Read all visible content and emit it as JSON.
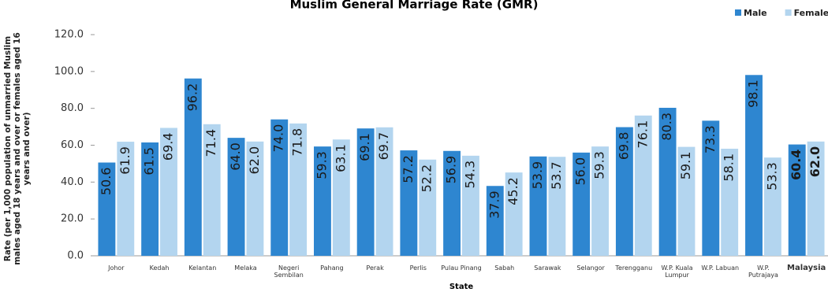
{
  "chart_data": {
    "type": "bar",
    "title": "Muslim General Marriage Rate (GMR)",
    "x_label": "State",
    "y_label": "Rate (per 1,000 population of unmarried Muslim males aged 18 years and over or females aged 16 years and over)",
    "categories": [
      "Johor",
      "Kedah",
      "Kelantan",
      "Melaka",
      "Negeri Sembilan",
      "Pahang",
      "Perak",
      "Perlis",
      "Pulau Pinang",
      "Sabah",
      "Sarawak",
      "Selangor",
      "Terengganu",
      "W.P. Kuala Lumpur",
      "W.P. Labuan",
      "W.P. Putrajaya",
      "Malaysia"
    ],
    "series": [
      {
        "name": "Male",
        "color": "#2e86d0",
        "values": [
          50.6,
          61.5,
          96.2,
          64.0,
          74.0,
          59.3,
          69.1,
          57.2,
          56.9,
          37.9,
          53.9,
          56.0,
          69.8,
          80.3,
          73.3,
          98.1,
          60.4
        ],
        "value_labels": [
          "50.6",
          "61.5",
          "96.2",
          "64.0",
          "74.0",
          "59.3",
          "69.1",
          "57.2",
          "56.9",
          "37.9",
          "53.9",
          "56.0",
          "69.8",
          "80.3",
          "73.3",
          "98.1",
          "60.4"
        ]
      },
      {
        "name": "Female",
        "color": "#b3d5ef",
        "values": [
          61.9,
          69.4,
          71.4,
          62.0,
          71.8,
          63.1,
          69.7,
          52.2,
          54.3,
          45.2,
          53.7,
          59.3,
          76.1,
          59.1,
          58.1,
          53.3,
          62.0
        ],
        "value_labels": [
          "61.9",
          "69.4",
          "71.4",
          "62.0",
          "71.8",
          "63.1",
          "69.7",
          "52.2",
          "54.3",
          "45.2",
          "53.7",
          "59.3",
          "76.1",
          "59.1",
          "58.1",
          "53.3",
          "62.0"
        ]
      }
    ],
    "ylim": [
      0,
      120
    ],
    "yticks": [
      {
        "value": 0,
        "label": "0.0"
      },
      {
        "value": 20,
        "label": "20.0"
      },
      {
        "value": 40,
        "label": "40.0"
      },
      {
        "value": 60,
        "label": "60.0"
      },
      {
        "value": 80,
        "label": "80.0"
      },
      {
        "value": 100,
        "label": "100.0"
      },
      {
        "value": 120,
        "label": "120.0"
      }
    ],
    "grid": false,
    "legend": "top-right"
  }
}
